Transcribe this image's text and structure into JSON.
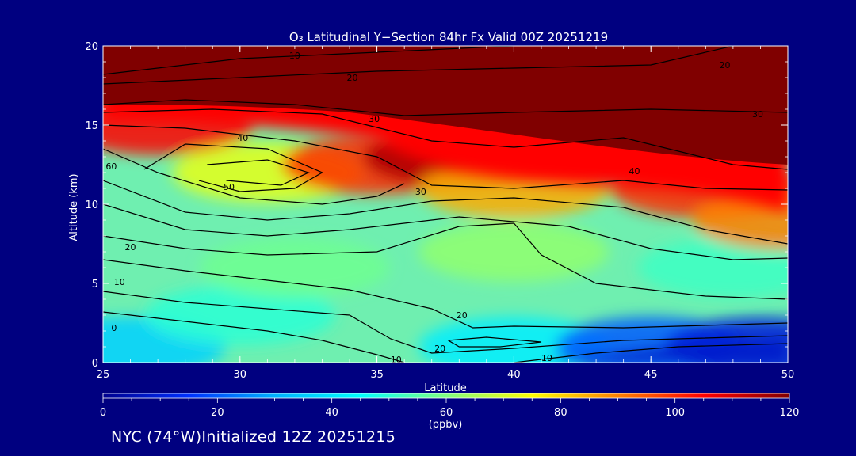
{
  "chart_data": {
    "type": "heatmap",
    "title": "O₃ Latitudinal Y−Section 84hr  Fx Valid 00Z 20251219",
    "xlabel": "Latitude",
    "ylabel": "Altitude (km)",
    "xlim": [
      25,
      50
    ],
    "ylim": [
      0,
      20
    ],
    "x_ticks": [
      25,
      30,
      35,
      40,
      45,
      50
    ],
    "y_ticks": [
      0,
      5,
      10,
      15,
      20
    ],
    "colorbar": {
      "min": 0,
      "max": 120,
      "ticks": [
        0,
        20,
        40,
        60,
        80,
        100,
        120
      ],
      "unit_label": "(ppbv)",
      "colors": [
        "#00008f",
        "#0030ff",
        "#00b0ff",
        "#00ffff",
        "#80ff80",
        "#ffff00",
        "#ff8000",
        "#ff0000",
        "#800000"
      ]
    },
    "field_description_points": [
      {
        "lat": 26,
        "alt": 1,
        "ppbv": 36
      },
      {
        "lat": 30,
        "alt": 3,
        "ppbv": 50
      },
      {
        "lat": 40,
        "alt": 1,
        "ppbv": 42
      },
      {
        "lat": 45,
        "alt": 1,
        "ppbv": 20
      },
      {
        "lat": 49,
        "alt": 1,
        "ppbv": 10
      },
      {
        "lat": 32,
        "alt": 6,
        "ppbv": 58
      },
      {
        "lat": 40,
        "alt": 7,
        "ppbv": 62
      },
      {
        "lat": 48,
        "alt": 6,
        "ppbv": 52
      },
      {
        "lat": 31,
        "alt": 12,
        "ppbv": 72
      },
      {
        "lat": 35,
        "alt": 12.5,
        "ppbv": 100
      },
      {
        "lat": 38,
        "alt": 13,
        "ppbv": 115
      },
      {
        "lat": 42,
        "alt": 14.5,
        "ppbv": 115
      },
      {
        "lat": 40,
        "alt": 11,
        "ppbv": 85
      },
      {
        "lat": 47,
        "alt": 11,
        "ppbv": 100
      },
      {
        "lat": 50,
        "alt": 9,
        "ppbv": 90
      },
      {
        "lat": 27,
        "alt": 15,
        "ppbv": 105
      },
      {
        "lat": 30,
        "alt": 18,
        "ppbv": 120
      }
    ],
    "contour_labels": [
      {
        "text": "10",
        "lat": 32,
        "alt": 19.4
      },
      {
        "text": "20",
        "lat": 34.1,
        "alt": 18.0
      },
      {
        "text": "20",
        "lat": 47.7,
        "alt": 18.8
      },
      {
        "text": "30",
        "lat": 34.9,
        "alt": 15.4
      },
      {
        "text": "30",
        "lat": 48.9,
        "alt": 15.7
      },
      {
        "text": "40",
        "lat": 30.1,
        "alt": 14.2
      },
      {
        "text": "40",
        "lat": 44.4,
        "alt": 12.1
      },
      {
        "text": "50",
        "lat": 29.6,
        "alt": 11.1
      },
      {
        "text": "30",
        "lat": 36.6,
        "alt": 10.8
      },
      {
        "text": "60",
        "lat": 25.3,
        "alt": 12.4
      },
      {
        "text": "20",
        "lat": 26.0,
        "alt": 7.3
      },
      {
        "text": "10",
        "lat": 25.6,
        "alt": 5.1
      },
      {
        "text": "0",
        "lat": 25.4,
        "alt": 2.2
      },
      {
        "text": "20",
        "lat": 38.1,
        "alt": 3.0
      },
      {
        "text": "20",
        "lat": 37.3,
        "alt": 0.9
      },
      {
        "text": "10",
        "lat": 35.7,
        "alt": 0.2
      },
      {
        "text": "10",
        "lat": 41.2,
        "alt": 0.3
      }
    ]
  },
  "footer_text": "NYC (74°W)Initialized 12Z 20251215"
}
